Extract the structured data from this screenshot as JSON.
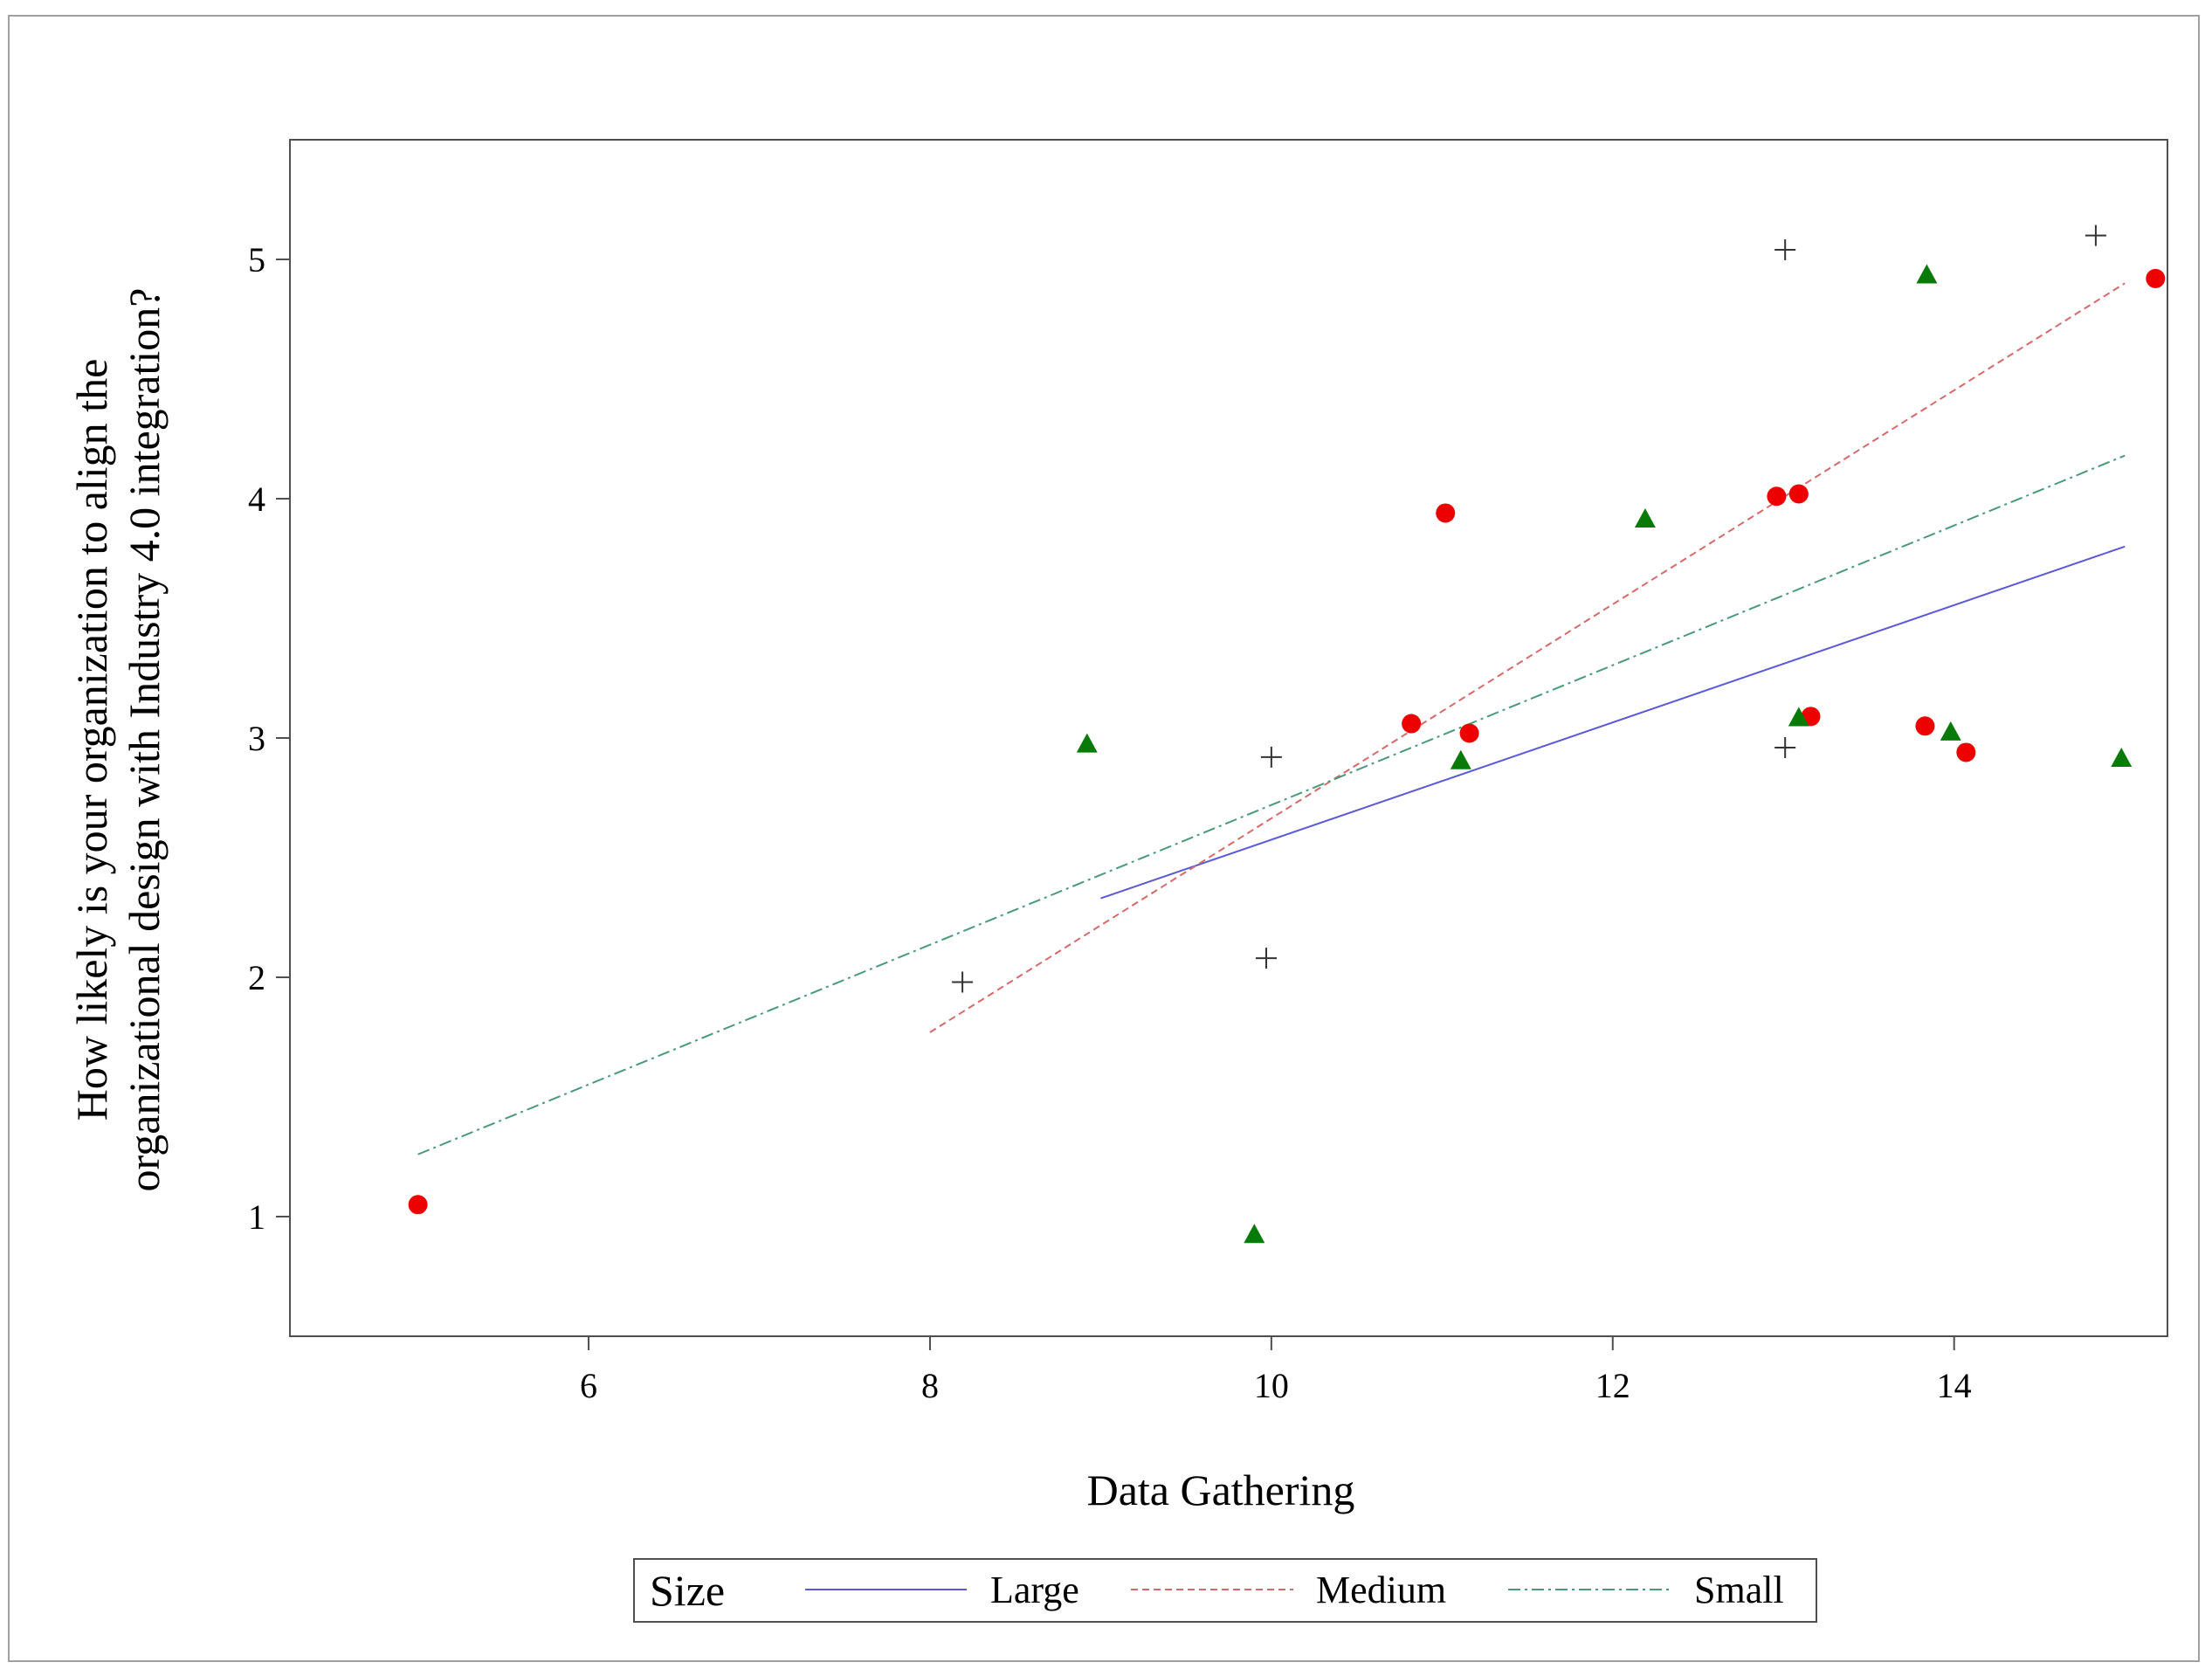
{
  "chart_data": {
    "type": "scatter",
    "title": "",
    "xlabel": "Data Gathering",
    "ylabel_lines": [
      "How likely is your organization to align the",
      "organizational design with Industry 4.0 integration?"
    ],
    "xlim": [
      4.25,
      15.25
    ],
    "ylim": [
      0.5,
      5.5
    ],
    "x_ticks": [
      6,
      8,
      10,
      12,
      14
    ],
    "y_ticks": [
      1,
      2,
      3,
      4,
      5
    ],
    "legend_title": "Size",
    "colors": {
      "large_line": "#5a5ad8",
      "medium_line": "#d46a6a",
      "small_line": "#4a9a7a",
      "red_points": "#ee0000",
      "green_points": "#087a08",
      "plus_points": "#333333",
      "frame": "#a0a0a0"
    },
    "series": [
      {
        "name": "Large",
        "line": {
          "x": [
            9,
            15
          ],
          "y": [
            2.33,
            3.8
          ],
          "style": "solid"
        },
        "points": [
          {
            "x": 5.0,
            "y": 1.05
          },
          {
            "x": 10.82,
            "y": 3.06
          },
          {
            "x": 11.02,
            "y": 3.94
          },
          {
            "x": 11.16,
            "y": 3.02
          },
          {
            "x": 12.96,
            "y": 4.01
          },
          {
            "x": 13.09,
            "y": 4.02
          },
          {
            "x": 13.16,
            "y": 3.09
          },
          {
            "x": 13.83,
            "y": 3.05
          },
          {
            "x": 14.07,
            "y": 2.94
          },
          {
            "x": 15.18,
            "y": 4.92
          }
        ],
        "marker": "circle"
      },
      {
        "name": "Medium",
        "line": {
          "x": [
            8,
            15
          ],
          "y": [
            1.77,
            4.9
          ],
          "style": "dashed"
        },
        "points": [
          {
            "x": 8.92,
            "y": 2.97
          },
          {
            "x": 9.9,
            "y": 0.92
          },
          {
            "x": 11.11,
            "y": 2.9
          },
          {
            "x": 12.19,
            "y": 3.91
          },
          {
            "x": 13.09,
            "y": 3.08
          },
          {
            "x": 13.84,
            "y": 4.93
          },
          {
            "x": 13.98,
            "y": 3.02
          },
          {
            "x": 14.98,
            "y": 2.91
          }
        ],
        "marker": "triangle"
      },
      {
        "name": "Small",
        "line": {
          "x": [
            5,
            15
          ],
          "y": [
            1.26,
            4.18
          ],
          "style": "dashdot"
        },
        "points": [
          {
            "x": 8.19,
            "y": 1.98
          },
          {
            "x": 9.97,
            "y": 2.08
          },
          {
            "x": 10.0,
            "y": 2.92
          },
          {
            "x": 13.01,
            "y": 5.04
          },
          {
            "x": 13.01,
            "y": 2.96
          },
          {
            "x": 14.83,
            "y": 5.1
          }
        ],
        "marker": "plus"
      }
    ]
  }
}
